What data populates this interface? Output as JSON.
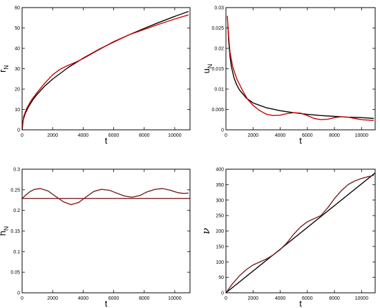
{
  "chart_data": [
    {
      "type": "line",
      "xlabel": "t",
      "ylabel_main": "r",
      "ylabel_sub": "N",
      "xlim": [
        0,
        11000
      ],
      "ylim": [
        0,
        60
      ],
      "xticks": [
        0,
        2000,
        4000,
        6000,
        8000,
        10000
      ],
      "yticks": [
        0,
        10,
        20,
        30,
        40,
        50,
        60
      ],
      "ytick_labels": [
        "0",
        "10",
        "20",
        "30",
        "40",
        "50",
        "60"
      ],
      "grid": false,
      "series": [
        {
          "color": "#000000",
          "x": [
            0,
            50,
            100,
            200,
            400,
            700,
            1000,
            1500,
            2000,
            3000,
            4000,
            5000,
            6000,
            7000,
            8000,
            9000,
            10000,
            10900
          ],
          "y": [
            0,
            3.9,
            5.6,
            7.9,
            11.1,
            14.7,
            17.6,
            21.6,
            24.9,
            30.5,
            35.2,
            39.4,
            43.1,
            46.6,
            49.8,
            52.8,
            55.7,
            58.1
          ]
        },
        {
          "color": "#cc0000",
          "x": [
            0,
            100,
            300,
            600,
            1000,
            1500,
            2000,
            2500,
            3000,
            3500,
            4000,
            5000,
            6000,
            7000,
            8000,
            9000,
            10000,
            10900
          ],
          "y": [
            0,
            6.5,
            10.5,
            14.5,
            18.5,
            23,
            27,
            29.8,
            31.6,
            33.2,
            35,
            39.2,
            43.3,
            46.6,
            49.3,
            51.9,
            54.4,
            56.4
          ]
        }
      ]
    },
    {
      "type": "line",
      "xlabel": "t",
      "ylabel_main": "u",
      "ylabel_sub": "N",
      "xlim": [
        0,
        11000
      ],
      "ylim": [
        0,
        0.03
      ],
      "xticks": [
        0,
        2000,
        4000,
        6000,
        8000,
        10000
      ],
      "yticks": [
        0,
        0.005,
        0.01,
        0.015,
        0.02,
        0.025,
        0.03
      ],
      "ytick_labels": [
        "0",
        "0.005",
        "0.01",
        "0.015",
        "0.02",
        "0.025",
        "0.03"
      ],
      "grid": false,
      "series": [
        {
          "color": "#000000",
          "x": [
            150,
            200,
            300,
            400,
            600,
            800,
            1000,
            1500,
            2000,
            3000,
            4000,
            5000,
            6000,
            7000,
            8000,
            9000,
            10000,
            10900
          ],
          "y": [
            0.0255,
            0.022,
            0.018,
            0.0155,
            0.0127,
            0.011,
            0.0098,
            0.0078,
            0.0066,
            0.0054,
            0.0047,
            0.0042,
            0.0038,
            0.0035,
            0.0033,
            0.0031,
            0.003,
            0.0028
          ]
        },
        {
          "color": "#cc0000",
          "x": [
            100,
            200,
            300,
            500,
            800,
            1200,
            1600,
            2000,
            2500,
            3000,
            3500,
            4000,
            4500,
            5000,
            5500,
            6000,
            6500,
            7000,
            7500,
            8000,
            8500,
            9000,
            9500,
            10000,
            10900
          ],
          "y": [
            0.028,
            0.023,
            0.019,
            0.0155,
            0.0125,
            0.0098,
            0.0075,
            0.006,
            0.0047,
            0.0038,
            0.0035,
            0.0036,
            0.004,
            0.0042,
            0.0041,
            0.0035,
            0.0028,
            0.0025,
            0.0026,
            0.003,
            0.0032,
            0.0031,
            0.0028,
            0.0025,
            0.0023
          ]
        }
      ]
    },
    {
      "type": "line",
      "xlabel": "t",
      "ylabel_main": "h",
      "ylabel_sub": "N",
      "xlim": [
        0,
        11000
      ],
      "ylim": [
        0,
        0.3
      ],
      "xticks": [
        0,
        2000,
        4000,
        6000,
        8000,
        10000
      ],
      "yticks": [
        0,
        0.05,
        0.1,
        0.15,
        0.2,
        0.25,
        0.3
      ],
      "ytick_labels": [
        "0",
        "0.05",
        "0.1",
        "0.15",
        "0.2",
        "0.25",
        "0.3"
      ],
      "grid": false,
      "series": [
        {
          "color": "#7a1f1f",
          "x": [
            0,
            11000
          ],
          "y": [
            0.229,
            0.229
          ]
        },
        {
          "color": "#7a1f1f",
          "x": [
            0,
            200,
            500,
            800,
            1200,
            1700,
            2200,
            2700,
            3200,
            3700,
            4200,
            4700,
            5200,
            5700,
            6200,
            6700,
            7200,
            7700,
            8200,
            8700,
            9200,
            9700,
            10200,
            10600,
            10900
          ],
          "y": [
            0.229,
            0.236,
            0.245,
            0.251,
            0.253,
            0.247,
            0.234,
            0.221,
            0.214,
            0.219,
            0.233,
            0.246,
            0.251,
            0.249,
            0.242,
            0.235,
            0.232,
            0.236,
            0.245,
            0.251,
            0.253,
            0.249,
            0.243,
            0.241,
            0.242
          ]
        }
      ]
    },
    {
      "type": "line",
      "xlabel": "t",
      "ylabel_symbol": "ν",
      "xlim": [
        0,
        11000
      ],
      "ylim": [
        0,
        400
      ],
      "xticks": [
        0,
        2000,
        4000,
        6000,
        8000,
        10000
      ],
      "yticks": [
        0,
        50,
        100,
        150,
        200,
        250,
        300,
        350,
        400
      ],
      "ytick_labels": [
        "0",
        "50",
        "100",
        "150",
        "200",
        "250",
        "300",
        "350",
        "400"
      ],
      "grid": false,
      "series": [
        {
          "color": "#000000",
          "x": [
            0,
            11000
          ],
          "y": [
            0,
            388
          ]
        },
        {
          "color": "#7a1f1f",
          "x": [
            0,
            500,
            1000,
            1500,
            2000,
            2500,
            3000,
            3500,
            4000,
            4500,
            5000,
            5500,
            6000,
            6500,
            7000,
            7500,
            8000,
            8500,
            9000,
            9500,
            10000,
            10500,
            10900
          ],
          "y": [
            0,
            30,
            55,
            75,
            90,
            100,
            110,
            123,
            140,
            162,
            190,
            213,
            230,
            240,
            250,
            275,
            305,
            330,
            350,
            362,
            370,
            376,
            380
          ]
        }
      ]
    }
  ]
}
